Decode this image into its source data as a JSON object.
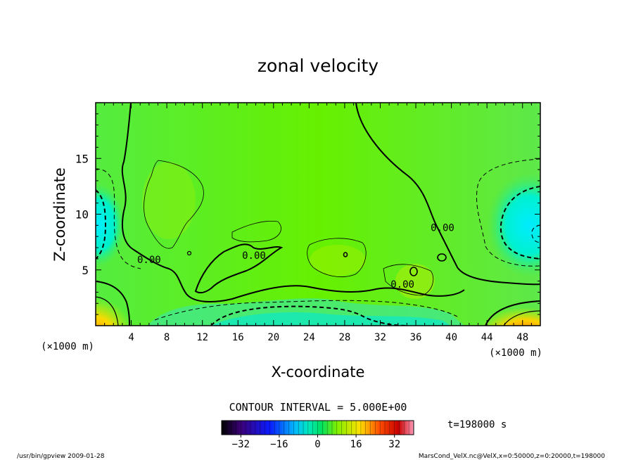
{
  "chart_data": {
    "type": "heatmap",
    "title": "zonal velocity",
    "xlabel": "X-coordinate",
    "ylabel": "Z-coordinate",
    "x_unit_left": "(×1000 m)",
    "x_unit_right": "(×1000 m)",
    "xlim": [
      0,
      50
    ],
    "ylim": [
      0,
      20
    ],
    "x_ticks": [
      4,
      8,
      12,
      16,
      20,
      24,
      28,
      32,
      36,
      40,
      44,
      48
    ],
    "y_ticks": [
      5,
      10,
      15
    ],
    "contour_interval_text": "CONTOUR INTERVAL = 5.000E+00",
    "contour_labels": [
      {
        "text": "0.00",
        "x": 6.0,
        "z": 5.6
      },
      {
        "text": "0.00",
        "x": 17.8,
        "z": 6.0
      },
      {
        "text": "0.00",
        "x": 34.5,
        "z": 3.4
      },
      {
        "text": "0.00",
        "x": 39.0,
        "z": 8.5
      }
    ],
    "colorbar": {
      "min": -40,
      "max": 40,
      "ticks": [
        -32,
        -16,
        0,
        16,
        32
      ],
      "colormap": [
        "#000000",
        "#3a0078",
        "#0a1aff",
        "#00b8ff",
        "#00e8c0",
        "#00e060",
        "#7fef00",
        "#ffe000",
        "#ff5000",
        "#c80000",
        "#ff9ab8"
      ]
    },
    "time_text": "t=198000 s",
    "footer_left": "/usr/bin/gpview  2009-01-28",
    "footer_right": "MarsCond_VelX.nc@VelX,x=0:50000,z=0:20000,t=198000",
    "field_summary": [
      {
        "region": "jet near ground (orange core)",
        "x": [
          0,
          2
        ],
        "z": [
          0,
          1.5
        ],
        "value": 20
      },
      {
        "region": "jet near ground (orange core)",
        "x": [
          43,
          50
        ],
        "z": [
          0,
          1.5
        ],
        "value": 18
      },
      {
        "region": "negative pocket (cyan)",
        "x": [
          0,
          2.5
        ],
        "z": [
          5,
          12
        ],
        "value": -10
      },
      {
        "region": "negative pocket (cyan)",
        "x": [
          44,
          50
        ],
        "z": [
          6,
          13
        ],
        "value": -12
      },
      {
        "region": "near-surface negative band",
        "x": [
          8,
          40
        ],
        "z": [
          0,
          2
        ],
        "value": -8
      },
      {
        "region": "interior positive",
        "x": [
          5,
          40
        ],
        "z": [
          5,
          20
        ],
        "value": 3
      }
    ]
  }
}
